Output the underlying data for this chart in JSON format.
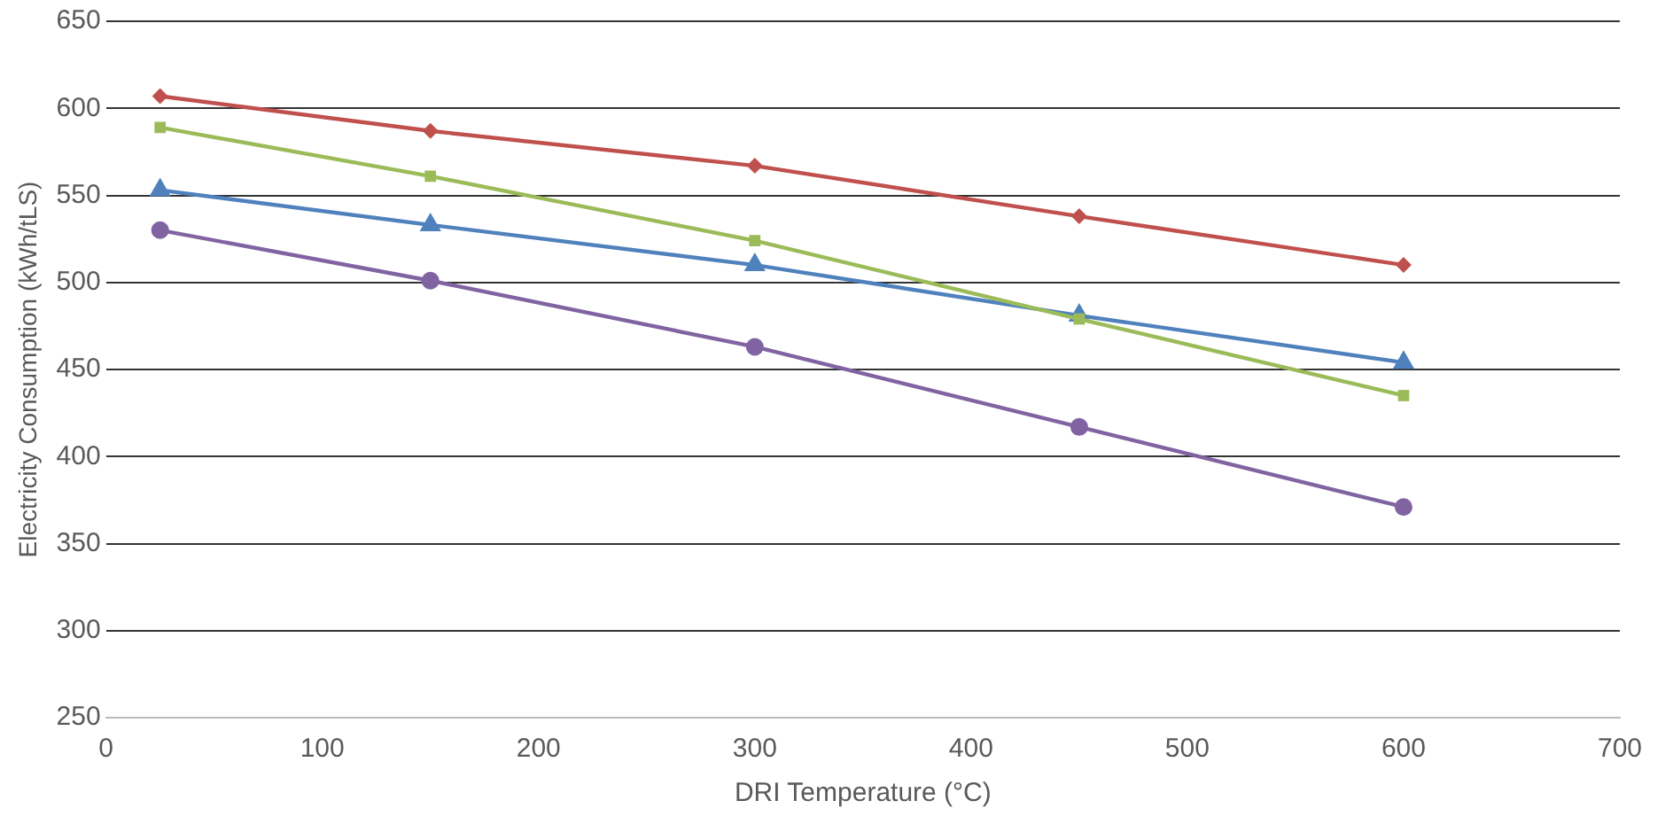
{
  "chart_data": {
    "type": "line",
    "xlabel": "DRI Temperature (°C)",
    "ylabel": "Electricity Consumption (kWh/tLS)",
    "x": [
      25,
      150,
      300,
      450,
      600
    ],
    "series": [
      {
        "color": "#c0504d",
        "marker": "diamond",
        "values": [
          607,
          587,
          567,
          538,
          510
        ]
      },
      {
        "color": "#9bbb59",
        "marker": "square",
        "values": [
          589,
          561,
          524,
          479,
          435
        ]
      },
      {
        "color": "#4f81bd",
        "marker": "triangle",
        "values": [
          553,
          533,
          510,
          481,
          454
        ]
      },
      {
        "color": "#8064a2",
        "marker": "circle",
        "values": [
          530,
          501,
          463,
          417,
          371
        ]
      }
    ],
    "xlim": [
      0,
      700
    ],
    "xticks": [
      0,
      100,
      200,
      300,
      400,
      500,
      600,
      700
    ],
    "ylim": [
      250,
      650
    ],
    "yticks": [
      250,
      300,
      350,
      400,
      450,
      500,
      550,
      600,
      650
    ],
    "grid": "y",
    "legend": false
  }
}
